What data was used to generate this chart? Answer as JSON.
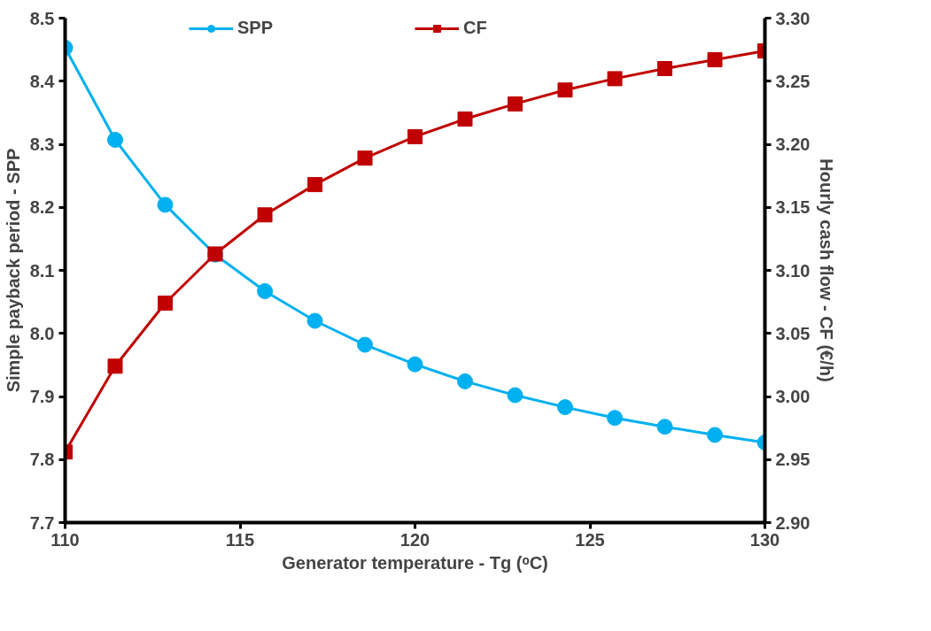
{
  "chart_data": {
    "type": "line",
    "xlabel": "Generator temperature - Tg (ᵒC)",
    "ylabel": "Simple payback period - SPP",
    "y2label": "Hourly cash flow - CF (€/h)",
    "x": [
      110,
      111.43,
      112.86,
      114.29,
      115.71,
      117.14,
      118.57,
      120,
      121.43,
      122.86,
      124.29,
      125.71,
      127.14,
      128.57,
      130
    ],
    "series": [
      {
        "name": "SPP",
        "color": "#00b0f0",
        "marker": "circle",
        "values": [
          8.453,
          8.307,
          8.204,
          8.125,
          8.067,
          8.02,
          7.982,
          7.951,
          7.924,
          7.902,
          7.883,
          7.866,
          7.852,
          7.839,
          7.827
        ]
      },
      {
        "name": "CF",
        "color": "#c00000",
        "marker": "square",
        "axis": "y2",
        "values": [
          2.956,
          3.024,
          3.074,
          3.113,
          3.144,
          3.168,
          3.189,
          3.206,
          3.22,
          3.232,
          3.243,
          3.252,
          3.26,
          3.267,
          3.274
        ]
      }
    ],
    "xlim": [
      110,
      130
    ],
    "xticks": [
      110,
      115,
      120,
      125,
      130
    ],
    "ylim": [
      7.7,
      8.5
    ],
    "yticks": [
      {
        "value": 7.7,
        "label": "7.7"
      },
      {
        "value": 7.8,
        "label": "7.8"
      },
      {
        "value": 7.9,
        "label": "7.9"
      },
      {
        "value": 8.0,
        "label": "8.0"
      },
      {
        "value": 8.1,
        "label": "8.1"
      },
      {
        "value": 8.2,
        "label": "8.2"
      },
      {
        "value": 8.3,
        "label": "8.3"
      },
      {
        "value": 8.4,
        "label": "8.4"
      },
      {
        "value": 8.5,
        "label": "8.5"
      }
    ],
    "y2lim": [
      2.9,
      3.3
    ],
    "y2ticks": [
      {
        "value": 2.9,
        "label": "2.90"
      },
      {
        "value": 2.95,
        "label": "2.95"
      },
      {
        "value": 3.0,
        "label": "3.00"
      },
      {
        "value": 3.05,
        "label": "3.05"
      },
      {
        "value": 3.1,
        "label": "3.10"
      },
      {
        "value": 3.15,
        "label": "3.15"
      },
      {
        "value": 3.2,
        "label": "3.20"
      },
      {
        "value": 3.25,
        "label": "3.25"
      },
      {
        "value": 3.3,
        "label": "3.30"
      }
    ],
    "grid": false,
    "legend": "top",
    "line_style": "solid"
  }
}
